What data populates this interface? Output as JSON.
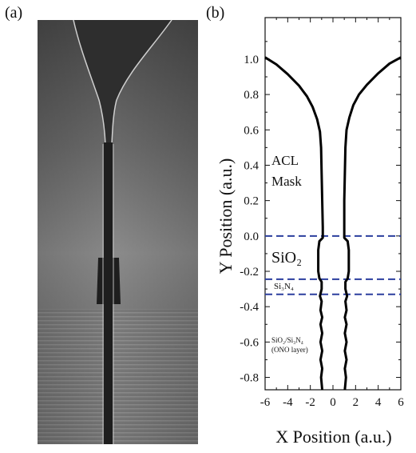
{
  "panel_a": {
    "label": "(a)"
  },
  "chart_data": {
    "type": "line",
    "panel_label": "(b)",
    "x_label": "X Position (a.u.)",
    "y_label": "Y Position (a.u.)",
    "xlim": [
      -6,
      6
    ],
    "ylim": [
      -0.87,
      1.235
    ],
    "xticks": [
      -6,
      -4,
      -2,
      0,
      2,
      4,
      6
    ],
    "yticks": [
      -0.8,
      -0.6,
      -0.4,
      -0.2,
      {
        "value": 0,
        "label": "0.0"
      },
      0.2,
      0.4,
      0.6,
      0.8,
      {
        "value": 1,
        "label": "1.0"
      }
    ],
    "color": "#000000",
    "series": [
      {
        "x": [
          -6.0,
          -5,
          -4,
          -3,
          -2.3,
          -1.8,
          -1.4,
          -1.15,
          -1.05,
          -1.0,
          -0.95,
          -0.9,
          -0.9,
          -1.2,
          -1.3,
          -1.3,
          -1.2,
          -1.0,
          -1.0,
          -1.15,
          -1.0,
          -1.1,
          -0.95,
          -1.1,
          -0.95,
          -1.1,
          -0.95,
          -1.1,
          -0.95,
          -1.05,
          -0.95
        ],
        "y": [
          1.01,
          0.97,
          0.915,
          0.85,
          0.79,
          0.73,
          0.66,
          0.59,
          0.5,
          0.35,
          0.2,
          0.05,
          -0.01,
          -0.03,
          -0.08,
          -0.2,
          -0.24,
          -0.26,
          -0.3,
          -0.34,
          -0.37,
          -0.42,
          -0.46,
          -0.5,
          -0.55,
          -0.6,
          -0.65,
          -0.7,
          -0.75,
          -0.8,
          -0.87
        ]
      },
      {
        "x": [
          6.0,
          5,
          4,
          3,
          2.3,
          1.8,
          1.45,
          1.2,
          1.1,
          1.05,
          1.0,
          1.0,
          1.0,
          1.3,
          1.4,
          1.4,
          1.3,
          1.1,
          1.1,
          1.25,
          1.1,
          1.2,
          1.05,
          1.2,
          1.05,
          1.2,
          1.05,
          1.2,
          1.05,
          1.15,
          1.05
        ],
        "y": [
          1.01,
          0.975,
          0.92,
          0.855,
          0.8,
          0.74,
          0.67,
          0.6,
          0.5,
          0.35,
          0.2,
          0.05,
          -0.01,
          -0.03,
          -0.08,
          -0.2,
          -0.24,
          -0.26,
          -0.3,
          -0.34,
          -0.37,
          -0.42,
          -0.46,
          -0.5,
          -0.55,
          -0.6,
          -0.65,
          -0.7,
          -0.75,
          -0.8,
          -0.87
        ]
      }
    ],
    "hlines": [
      0,
      -0.245,
      -0.33
    ],
    "hline_color": "#2b3f9e",
    "annotations": [
      "ACL",
      "Mask",
      "SiO₂",
      "Si₃N₄",
      "SiO₂/Si₃N₄",
      "(ONO layer)"
    ]
  }
}
